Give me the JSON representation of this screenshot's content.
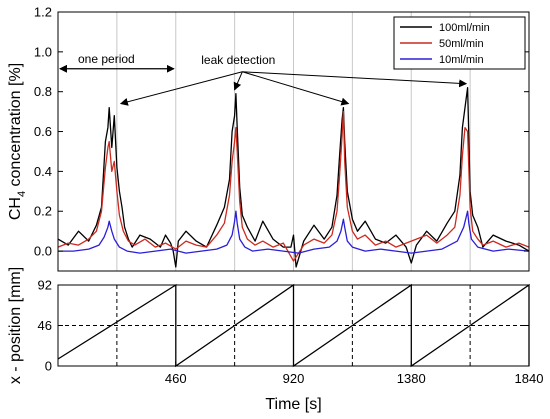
{
  "chart_data": [
    {
      "type": "line",
      "title": "",
      "xlabel": "",
      "ylabel": "CH4 concentration [%]",
      "ylabel_main": "CH",
      "ylabel_sub": "4",
      "ylabel_rest": " concentration [%]",
      "xlim": [
        0,
        1840
      ],
      "ylim": [
        -0.1,
        1.2
      ],
      "yticks": [
        "0.0",
        "0.2",
        "0.4",
        "0.6",
        "0.8",
        "1.0",
        "1.2"
      ],
      "ytick_values": [
        0.0,
        0.2,
        0.4,
        0.6,
        0.8,
        1.0,
        1.2
      ],
      "vertical_gridlines_at": [
        230,
        460,
        690,
        920,
        1150,
        1380,
        1610
      ],
      "legend_position": "top-right",
      "series": [
        {
          "name": "100ml/min",
          "color": "#000000",
          "x": [
            0,
            40,
            80,
            120,
            150,
            170,
            185,
            195,
            200,
            210,
            220,
            230,
            240,
            250,
            260,
            275,
            290,
            320,
            360,
            400,
            420,
            440,
            450,
            460,
            470,
            500,
            540,
            580,
            620,
            650,
            670,
            680,
            690,
            695,
            700,
            710,
            720,
            740,
            770,
            800,
            840,
            880,
            910,
            920,
            930,
            960,
            1000,
            1040,
            1070,
            1090,
            1100,
            1110,
            1115,
            1120,
            1130,
            1150,
            1170,
            1200,
            1240,
            1280,
            1320,
            1360,
            1380,
            1400,
            1440,
            1480,
            1520,
            1550,
            1570,
            1580,
            1590,
            1600,
            1605,
            1610,
            1620,
            1640,
            1660,
            1700,
            1750,
            1800,
            1840
          ],
          "values": [
            0.06,
            0.03,
            0.1,
            0.05,
            0.13,
            0.22,
            0.55,
            0.62,
            0.72,
            0.52,
            0.68,
            0.42,
            0.3,
            0.22,
            0.12,
            0.06,
            0.02,
            0.08,
            0.06,
            0.02,
            0.08,
            0.04,
            0.0,
            -0.08,
            0.05,
            0.1,
            0.05,
            0.02,
            0.13,
            0.22,
            0.36,
            0.6,
            0.68,
            0.79,
            0.62,
            0.32,
            0.18,
            0.12,
            0.05,
            0.15,
            0.06,
            0.02,
            0.02,
            0.08,
            -0.08,
            0.05,
            0.13,
            0.06,
            0.12,
            0.28,
            0.48,
            0.66,
            0.72,
            0.55,
            0.3,
            0.16,
            0.1,
            0.15,
            0.06,
            0.04,
            0.08,
            0.02,
            -0.06,
            0.03,
            0.1,
            0.05,
            0.14,
            0.2,
            0.38,
            0.62,
            0.72,
            0.82,
            0.58,
            0.3,
            0.18,
            0.12,
            0.02,
            0.08,
            0.05,
            0.03,
            0.0
          ]
        },
        {
          "name": "50ml/min",
          "color": "#cc2a1e",
          "x": [
            0,
            40,
            80,
            120,
            150,
            170,
            185,
            195,
            200,
            210,
            220,
            230,
            240,
            255,
            275,
            300,
            340,
            380,
            420,
            460,
            500,
            540,
            580,
            620,
            650,
            670,
            680,
            690,
            695,
            700,
            710,
            720,
            740,
            770,
            800,
            840,
            880,
            920,
            960,
            1000,
            1040,
            1070,
            1090,
            1100,
            1110,
            1115,
            1120,
            1130,
            1150,
            1170,
            1200,
            1240,
            1280,
            1320,
            1360,
            1400,
            1440,
            1480,
            1520,
            1550,
            1570,
            1580,
            1590,
            1600,
            1605,
            1610,
            1620,
            1640,
            1660,
            1700,
            1750,
            1800,
            1840
          ],
          "values": [
            0.02,
            0.04,
            0.03,
            0.06,
            0.1,
            0.2,
            0.42,
            0.52,
            0.55,
            0.4,
            0.45,
            0.3,
            0.18,
            0.1,
            0.05,
            0.03,
            0.06,
            0.02,
            0.04,
            0.01,
            0.05,
            0.03,
            0.02,
            0.08,
            0.14,
            0.28,
            0.45,
            0.55,
            0.62,
            0.5,
            0.25,
            0.12,
            0.06,
            0.03,
            0.05,
            0.02,
            0.04,
            -0.05,
            0.03,
            0.06,
            0.04,
            0.08,
            0.2,
            0.38,
            0.58,
            0.7,
            0.45,
            0.22,
            0.1,
            0.06,
            0.08,
            0.03,
            0.05,
            0.02,
            0.04,
            0.06,
            0.08,
            0.04,
            0.08,
            0.12,
            0.28,
            0.48,
            0.62,
            0.6,
            0.42,
            0.22,
            0.1,
            0.06,
            0.03,
            0.05,
            0.02,
            0.04,
            0.02
          ]
        },
        {
          "name": "10ml/min",
          "color": "#2b1fd6",
          "x": [
            0,
            60,
            120,
            160,
            180,
            195,
            200,
            210,
            220,
            240,
            270,
            320,
            380,
            440,
            500,
            560,
            620,
            660,
            680,
            690,
            695,
            700,
            710,
            730,
            760,
            820,
            880,
            940,
            1000,
            1060,
            1090,
            1105,
            1115,
            1120,
            1130,
            1150,
            1200,
            1260,
            1320,
            1380,
            1440,
            1500,
            1560,
            1585,
            1600,
            1605,
            1615,
            1640,
            1700,
            1760,
            1840
          ],
          "values": [
            0.0,
            0.0,
            0.01,
            0.03,
            0.07,
            0.12,
            0.15,
            0.1,
            0.06,
            0.02,
            0.0,
            -0.01,
            0.0,
            0.01,
            -0.01,
            0.0,
            0.01,
            0.03,
            0.08,
            0.15,
            0.2,
            0.14,
            0.06,
            0.02,
            0.0,
            0.01,
            0.0,
            -0.01,
            0.01,
            0.02,
            0.05,
            0.1,
            0.16,
            0.12,
            0.05,
            0.02,
            0.0,
            0.01,
            0.0,
            -0.01,
            0.0,
            0.01,
            0.05,
            0.12,
            0.2,
            0.14,
            0.06,
            0.02,
            0.0,
            0.01,
            0.0
          ]
        }
      ],
      "annotations": {
        "period_label": "one period",
        "period_range": [
          0,
          460
        ],
        "period_arrow_y": 0.915,
        "leak_label": "leak detection",
        "leak_label_anchor": [
          720,
          0.96
        ],
        "leak_arrow_origin": [
          720,
          0.9
        ],
        "leak_arrow_targets": [
          [
            230,
            0.72
          ],
          [
            690,
            0.79
          ],
          [
            1150,
            0.72
          ],
          [
            1610,
            0.82
          ]
        ]
      }
    },
    {
      "type": "line",
      "title": "",
      "xlabel": "Time [s]",
      "ylabel": "x - position [mm]",
      "xlim": [
        0,
        1840
      ],
      "ylim": [
        0,
        92
      ],
      "xticks": [
        "460",
        "920",
        "1380",
        "1840"
      ],
      "xtick_values": [
        460,
        920,
        1380,
        1840
      ],
      "yticks": [
        "0",
        "46",
        "92"
      ],
      "ytick_values": [
        0,
        46,
        92
      ],
      "series": [
        {
          "name": "",
          "color": "#000000",
          "x": [
            0,
            460,
            460,
            920,
            920,
            1380,
            1380,
            1840,
            1840
          ],
          "values": [
            8,
            92,
            0,
            92,
            0,
            92,
            0,
            92,
            0
          ]
        }
      ],
      "dashed_hline_at": 46,
      "dashed_vlines_at": [
        230,
        690,
        1150,
        1610
      ]
    }
  ]
}
